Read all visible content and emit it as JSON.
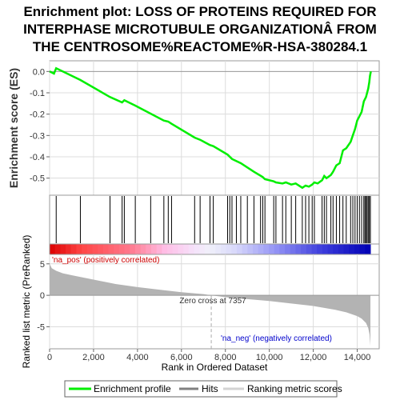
{
  "chart_data": {
    "type": "line",
    "title_lines": [
      "Enrichment plot: LOSS OF PROTEINS REQUIRED FOR",
      "INTERPHASE MICROTUBULE ORGANIZATIONÂ FROM",
      "THE CENTROSOME%REACTOME%R-HSA-380284.1"
    ],
    "es_ylabel": "Enrichment score (ES)",
    "rank_ylabel": "Ranked list metric (PreRanked)",
    "xlabel": "Rank in Ordered Dataset",
    "xlim": [
      0,
      15000
    ],
    "x_ticks": [
      0,
      2000,
      4000,
      6000,
      8000,
      10000,
      12000,
      14000
    ],
    "x_tick_labels": [
      "0",
      "2,000",
      "4,000",
      "6,000",
      "8,000",
      "10,000",
      "12,000",
      "14,000"
    ],
    "es_ylim": [
      -0.58,
      0.05
    ],
    "es_ticks": [
      0.0,
      -0.1,
      -0.2,
      -0.3,
      -0.4,
      -0.5
    ],
    "es_tick_labels": [
      "0.0",
      "-0.1",
      "-0.2",
      "-0.3",
      "-0.4",
      "-0.5"
    ],
    "rank_ylim": [
      -8.5,
      6.5
    ],
    "rank_ticks": [
      5,
      0,
      -5
    ],
    "rank_tick_labels": [
      "5",
      "0",
      "-5"
    ],
    "enrichment_profile": {
      "x": [
        0,
        200,
        300,
        1400,
        2750,
        3300,
        3400,
        3900,
        5200,
        5400,
        5550,
        6600,
        6850,
        7300,
        7450,
        8100,
        8300,
        8700,
        9300,
        9700,
        9800,
        10200,
        10300,
        10600,
        10750,
        11000,
        11200,
        11500,
        11650,
        11800,
        11950,
        12050,
        12200,
        12400,
        12500,
        12600,
        12800,
        12900,
        13050,
        13200,
        13350,
        13500,
        13700,
        13800,
        13900,
        14000,
        14100,
        14200,
        14300,
        14400,
        14500,
        14550,
        14580,
        14620
      ],
      "y": [
        0.0,
        -0.01,
        0.015,
        -0.04,
        -0.12,
        -0.145,
        -0.135,
        -0.16,
        -0.23,
        -0.235,
        -0.245,
        -0.31,
        -0.32,
        -0.345,
        -0.35,
        -0.39,
        -0.41,
        -0.43,
        -0.47,
        -0.495,
        -0.505,
        -0.515,
        -0.52,
        -0.525,
        -0.52,
        -0.53,
        -0.525,
        -0.545,
        -0.535,
        -0.54,
        -0.53,
        -0.52,
        -0.525,
        -0.51,
        -0.49,
        -0.5,
        -0.485,
        -0.47,
        -0.44,
        -0.43,
        -0.37,
        -0.36,
        -0.33,
        -0.3,
        -0.27,
        -0.23,
        -0.21,
        -0.19,
        -0.14,
        -0.12,
        -0.08,
        -0.05,
        -0.02,
        0.0
      ]
    },
    "hits": [
      300,
      1400,
      2750,
      3300,
      3400,
      3900,
      4600,
      5200,
      5400,
      5550,
      6600,
      6850,
      7300,
      7450,
      8100,
      8200,
      8300,
      8500,
      8700,
      9000,
      9300,
      9600,
      9700,
      9800,
      10200,
      10300,
      10600,
      10750,
      11000,
      11200,
      11500,
      11650,
      11800,
      11950,
      12050,
      12400,
      12500,
      12600,
      12800,
      12900,
      13050,
      13200,
      13350,
      13500,
      13700,
      13800,
      13900,
      14000,
      14100,
      14200,
      14300,
      14350,
      14400,
      14450,
      14500,
      14550,
      14600
    ],
    "ranked_metric": {
      "x": [
        0,
        100,
        300,
        600,
        1000,
        2000,
        3000,
        4000,
        5000,
        6000,
        7000,
        7357,
        8000,
        9000,
        10000,
        11000,
        12000,
        13000,
        13500,
        14000,
        14200,
        14400,
        14500,
        14560,
        14600
      ],
      "y": [
        5.0,
        4.3,
        3.9,
        3.5,
        3.2,
        2.5,
        1.8,
        1.3,
        0.9,
        0.5,
        0.2,
        0.0,
        -0.3,
        -0.6,
        -0.9,
        -1.3,
        -1.7,
        -2.3,
        -2.7,
        -3.3,
        -3.7,
        -4.4,
        -5.2,
        -6.2,
        -8.0
      ]
    },
    "zero_cross": 7357,
    "zero_cross_label": "Zero cross at 7357",
    "na_pos_label": "'na_pos' (positively correlated)",
    "na_neg_label": "'na_neg' (negatively correlated)",
    "legend": [
      {
        "label": "Enrichment profile",
        "color": "#00ee00"
      },
      {
        "label": "Hits",
        "color": "#808080"
      },
      {
        "label": "Ranking metric scores",
        "color": "#d3d3d3"
      }
    ],
    "colors": {
      "profile": "#00ee00",
      "hits": "#000000",
      "metric_fill": "#b3b3b3",
      "na_pos_text": "#cc0000",
      "na_neg_text": "#0000cc"
    }
  }
}
